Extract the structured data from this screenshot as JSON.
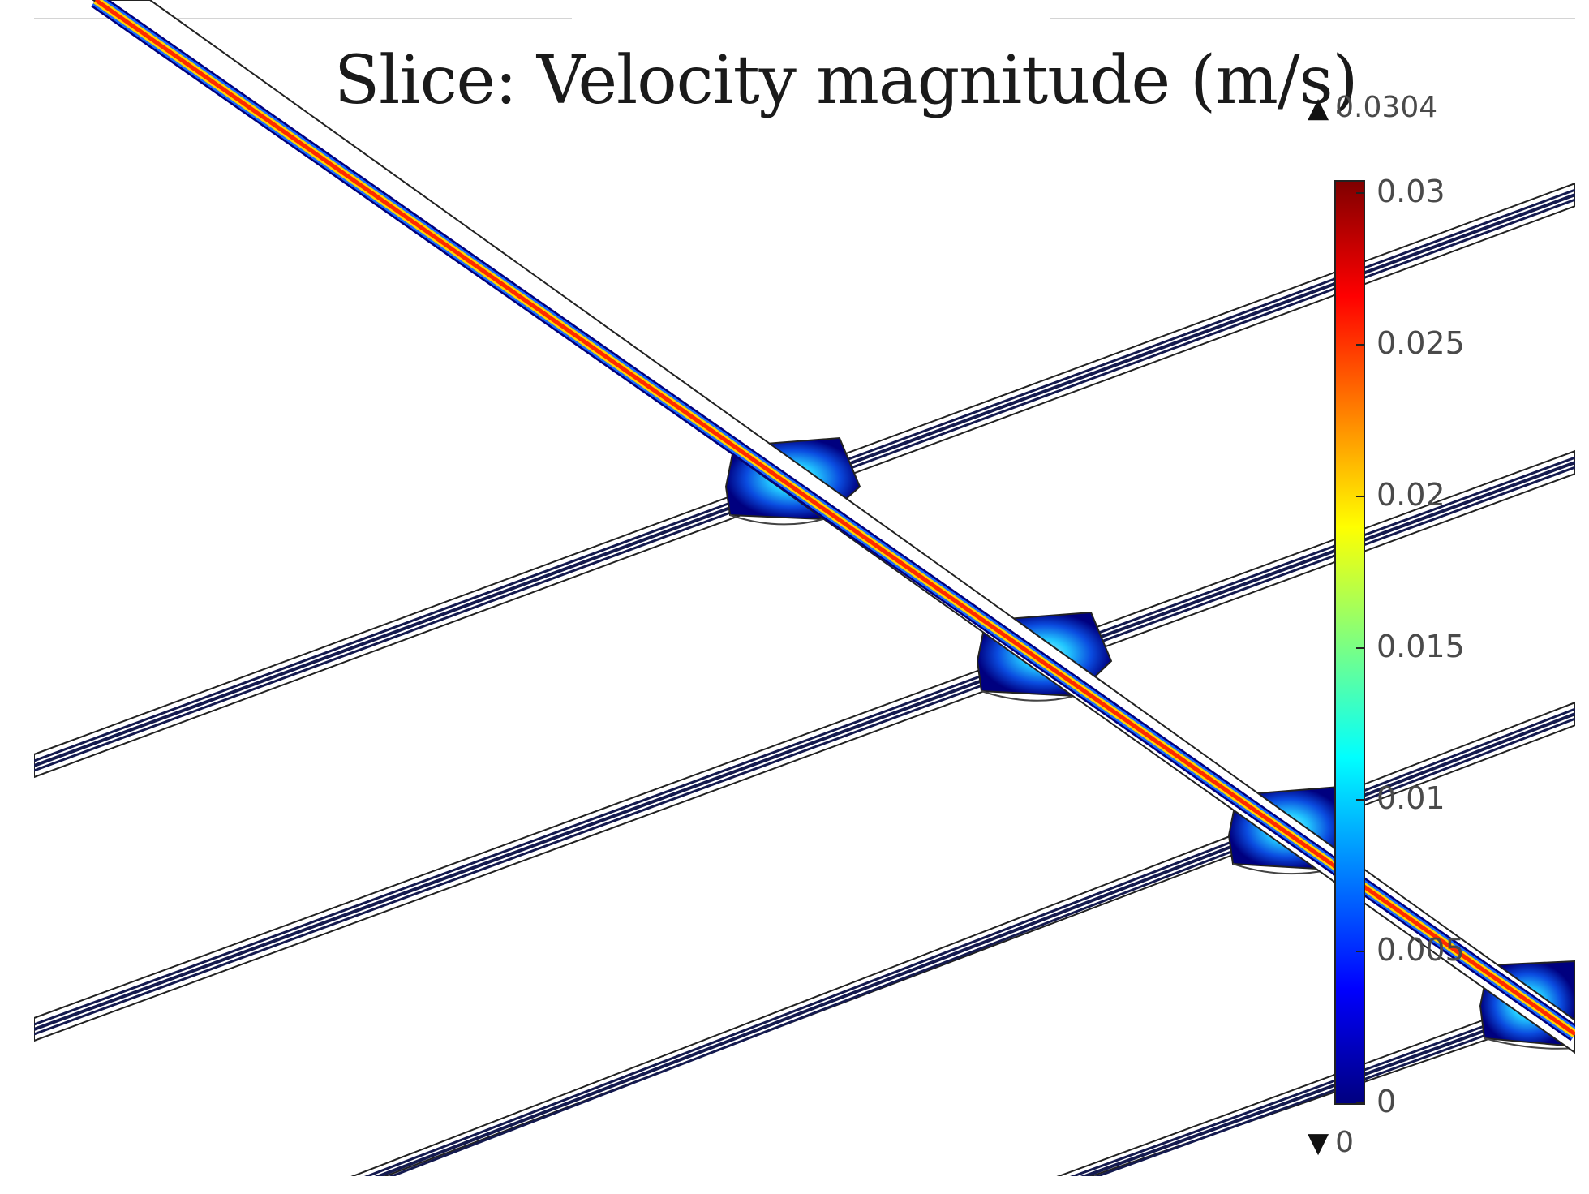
{
  "title": "Slice: Velocity magnitude (m/s)",
  "colorbar": {
    "max_marker": "0.0304",
    "min_marker": "0",
    "max_marker_glyph": "▲",
    "min_marker_glyph": "▼",
    "ticks": [
      "0.03",
      "0.025",
      "0.02",
      "0.015",
      "0.01",
      "0.005",
      "0"
    ],
    "range": [
      0,
      0.0304
    ],
    "colormap": "rainbow"
  },
  "colors": {
    "low": "#00007f",
    "high": "#7f0000",
    "channel_outline": "#222222",
    "wall_dark": "#141a4f"
  }
}
